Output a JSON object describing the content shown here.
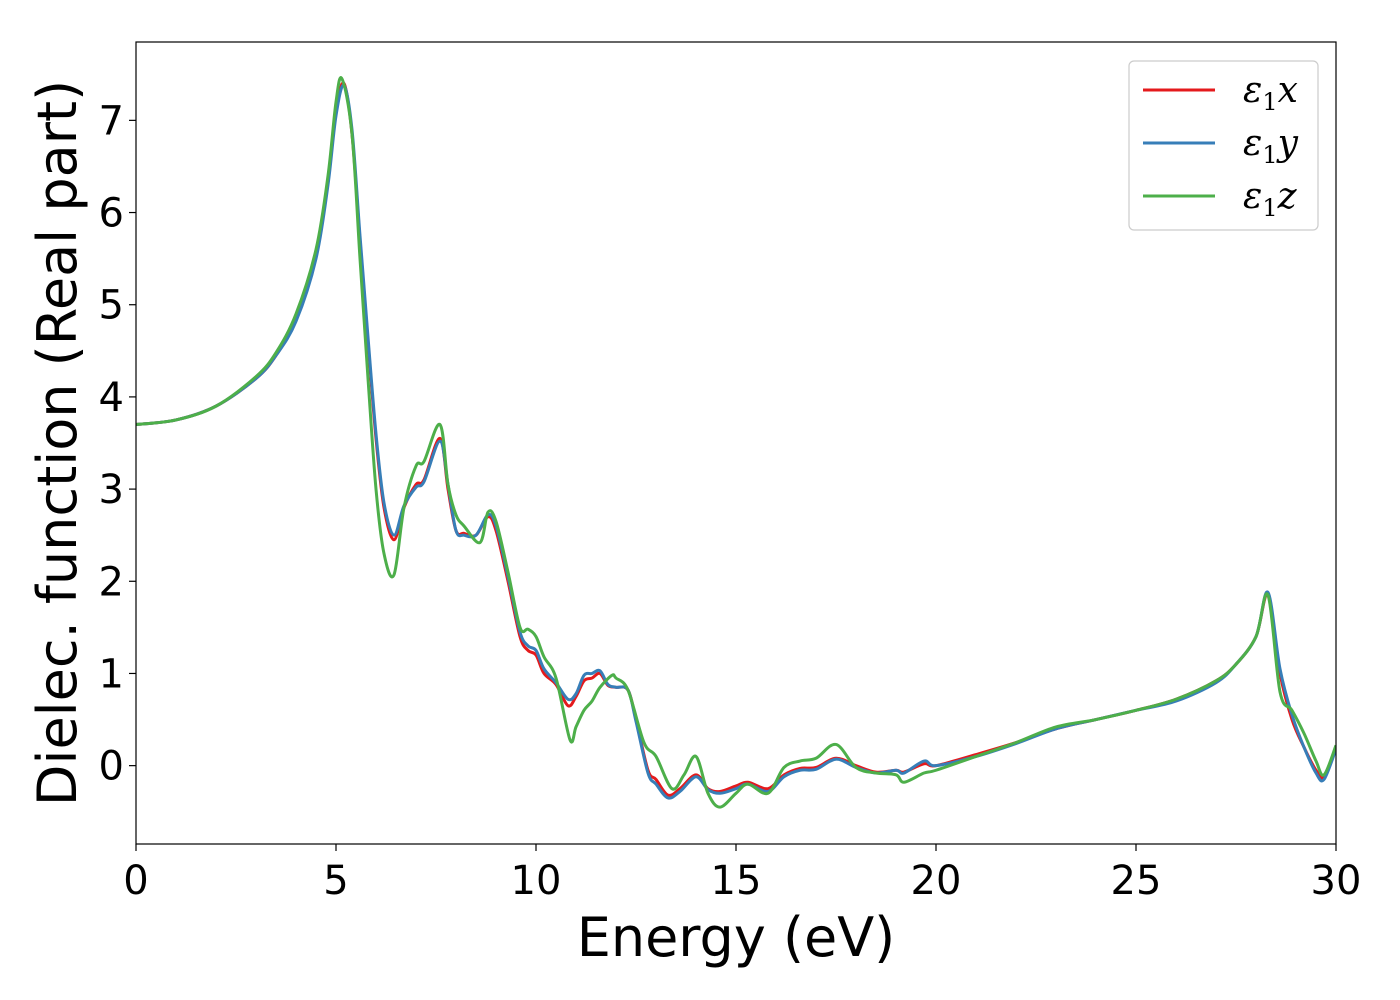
{
  "chart_data": {
    "type": "line",
    "xlabel": "Energy (eV)",
    "ylabel": "Dielec. function (Real part)",
    "xlim": [
      0,
      30
    ],
    "ylim": [
      -0.85,
      7.85
    ],
    "xticks": [
      0,
      5,
      10,
      15,
      20,
      25,
      30
    ],
    "xtick_labels": [
      "0",
      "5",
      "10",
      "15",
      "20",
      "25",
      "30"
    ],
    "yticks": [
      0,
      1,
      2,
      3,
      4,
      5,
      6,
      7
    ],
    "ytick_labels": [
      "0",
      "1",
      "2",
      "3",
      "4",
      "5",
      "6",
      "7"
    ],
    "grid": false,
    "legend_position": "top-right",
    "series": [
      {
        "name": "ε1x",
        "legend_base": "ε",
        "legend_sub": "1",
        "legend_tail": "x",
        "color": "#e41a1c",
        "x": [
          0,
          1,
          2,
          3,
          3.5,
          4,
          4.5,
          4.8,
          5.0,
          5.2,
          5.4,
          5.6,
          5.8,
          6.0,
          6.2,
          6.45,
          6.7,
          7.0,
          7.2,
          7.6,
          7.8,
          8.0,
          8.2,
          8.5,
          8.8,
          9.0,
          9.3,
          9.6,
          9.8,
          10.0,
          10.2,
          10.5,
          10.8,
          11.0,
          11.2,
          11.4,
          11.6,
          11.8,
          12.0,
          12.3,
          12.5,
          12.8,
          13.0,
          13.3,
          13.6,
          14.0,
          14.3,
          14.6,
          15.0,
          15.3,
          15.8,
          16.2,
          16.6,
          17.0,
          17.5,
          18.0,
          18.5,
          19.0,
          19.2,
          19.7,
          20.0,
          21.0,
          22.0,
          23.0,
          24.0,
          25.0,
          26.0,
          27.0,
          27.5,
          28.0,
          28.3,
          28.6,
          28.9,
          29.2,
          29.5,
          29.7,
          30.0
        ],
        "y": [
          3.7,
          3.75,
          3.9,
          4.2,
          4.45,
          4.85,
          5.55,
          6.35,
          7.1,
          7.4,
          6.85,
          5.7,
          4.6,
          3.55,
          2.8,
          2.45,
          2.8,
          3.05,
          3.1,
          3.55,
          3.0,
          2.55,
          2.52,
          2.5,
          2.7,
          2.55,
          2.0,
          1.4,
          1.25,
          1.2,
          1.0,
          0.88,
          0.65,
          0.75,
          0.92,
          0.95,
          1.0,
          0.87,
          0.85,
          0.82,
          0.5,
          -0.05,
          -0.15,
          -0.32,
          -0.25,
          -0.1,
          -0.25,
          -0.28,
          -0.22,
          -0.18,
          -0.25,
          -0.1,
          -0.03,
          -0.02,
          0.08,
          0.0,
          -0.07,
          -0.05,
          -0.07,
          0.02,
          0.0,
          0.12,
          0.25,
          0.4,
          0.5,
          0.6,
          0.72,
          0.92,
          1.1,
          1.4,
          1.85,
          1.0,
          0.5,
          0.2,
          -0.05,
          -0.12,
          0.2
        ]
      },
      {
        "name": "ε1y",
        "legend_base": "ε",
        "legend_sub": "1",
        "legend_tail": "y",
        "color": "#377eb8",
        "x": [
          0,
          1,
          2,
          3,
          3.5,
          4,
          4.5,
          4.8,
          5.0,
          5.2,
          5.4,
          5.6,
          5.8,
          6.0,
          6.2,
          6.45,
          6.7,
          7.0,
          7.2,
          7.6,
          7.8,
          8.0,
          8.2,
          8.5,
          8.8,
          9.0,
          9.3,
          9.6,
          9.8,
          10.0,
          10.2,
          10.5,
          10.8,
          11.0,
          11.2,
          11.4,
          11.6,
          11.8,
          12.0,
          12.3,
          12.5,
          12.8,
          13.0,
          13.3,
          13.6,
          14.0,
          14.3,
          14.6,
          15.0,
          15.3,
          15.8,
          16.2,
          16.6,
          17.0,
          17.5,
          18.0,
          18.5,
          19.0,
          19.2,
          19.7,
          20.0,
          21.0,
          22.0,
          23.0,
          24.0,
          25.0,
          26.0,
          27.0,
          27.5,
          28.0,
          28.3,
          28.6,
          28.9,
          29.2,
          29.5,
          29.7,
          30.0
        ],
        "y": [
          3.7,
          3.75,
          3.9,
          4.2,
          4.45,
          4.82,
          5.5,
          6.3,
          7.05,
          7.38,
          6.9,
          5.75,
          4.65,
          3.6,
          2.85,
          2.5,
          2.82,
          3.02,
          3.08,
          3.52,
          3.05,
          2.55,
          2.5,
          2.5,
          2.72,
          2.6,
          2.05,
          1.45,
          1.3,
          1.25,
          1.05,
          0.9,
          0.72,
          0.78,
          0.98,
          1.0,
          1.03,
          0.88,
          0.85,
          0.82,
          0.48,
          -0.08,
          -0.2,
          -0.35,
          -0.28,
          -0.12,
          -0.26,
          -0.3,
          -0.25,
          -0.2,
          -0.28,
          -0.12,
          -0.05,
          -0.04,
          0.07,
          -0.02,
          -0.08,
          -0.05,
          -0.08,
          0.05,
          0.0,
          0.1,
          0.24,
          0.4,
          0.5,
          0.6,
          0.7,
          0.9,
          1.1,
          1.4,
          1.88,
          1.05,
          0.55,
          0.2,
          -0.08,
          -0.15,
          0.18
        ]
      },
      {
        "name": "ε1z",
        "legend_base": "ε",
        "legend_sub": "1",
        "legend_tail": "z",
        "color": "#4daf4a",
        "x": [
          0,
          1,
          2,
          3,
          3.5,
          4,
          4.5,
          4.8,
          5.0,
          5.15,
          5.4,
          5.6,
          5.8,
          6.0,
          6.2,
          6.45,
          6.7,
          7.0,
          7.2,
          7.6,
          7.8,
          8.0,
          8.2,
          8.6,
          8.8,
          9.0,
          9.3,
          9.6,
          9.8,
          10.0,
          10.2,
          10.5,
          10.85,
          11.0,
          11.2,
          11.4,
          11.6,
          11.9,
          12.0,
          12.3,
          12.7,
          13.0,
          13.4,
          13.7,
          14.0,
          14.3,
          14.6,
          15.0,
          15.3,
          15.8,
          16.2,
          16.6,
          17.0,
          17.5,
          18.0,
          18.5,
          19.0,
          19.2,
          19.7,
          20.0,
          21.0,
          22.0,
          23.0,
          24.0,
          25.0,
          26.0,
          27.0,
          27.5,
          28.0,
          28.3,
          28.6,
          28.9,
          29.2,
          29.5,
          29.7,
          30.0
        ],
        "y": [
          3.7,
          3.75,
          3.9,
          4.22,
          4.48,
          4.9,
          5.6,
          6.4,
          7.2,
          7.45,
          6.85,
          5.5,
          4.2,
          3.0,
          2.3,
          2.07,
          2.8,
          3.25,
          3.3,
          3.7,
          3.05,
          2.72,
          2.6,
          2.42,
          2.75,
          2.65,
          2.1,
          1.5,
          1.48,
          1.4,
          1.18,
          0.95,
          0.28,
          0.42,
          0.6,
          0.7,
          0.85,
          0.98,
          0.95,
          0.82,
          0.25,
          0.1,
          -0.25,
          -0.1,
          0.1,
          -0.3,
          -0.45,
          -0.3,
          -0.2,
          -0.3,
          -0.02,
          0.05,
          0.08,
          0.23,
          -0.02,
          -0.08,
          -0.1,
          -0.18,
          -0.08,
          -0.05,
          0.1,
          0.25,
          0.42,
          0.5,
          0.6,
          0.72,
          0.92,
          1.1,
          1.4,
          1.85,
          0.8,
          0.6,
          0.35,
          0.05,
          -0.1,
          0.22
        ]
      }
    ]
  }
}
